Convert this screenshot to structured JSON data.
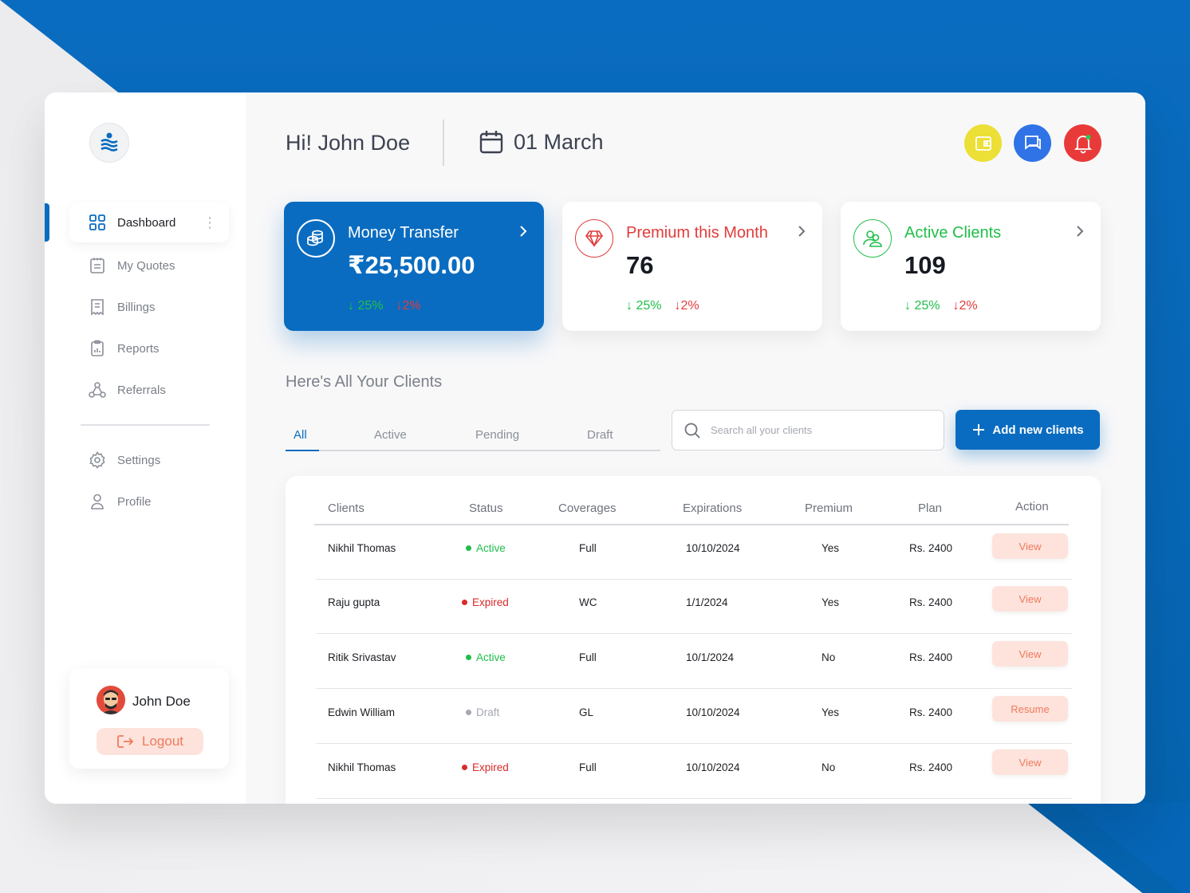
{
  "sidebar": {
    "items": [
      {
        "label": "Dashboard",
        "icon": "grid-icon"
      },
      {
        "label": "My Quotes",
        "icon": "quotes-icon"
      },
      {
        "label": "Billings",
        "icon": "billing-icon"
      },
      {
        "label": "Reports",
        "icon": "report-icon"
      },
      {
        "label": "Referrals",
        "icon": "referral-icon"
      },
      {
        "label": "Settings",
        "icon": "gear-icon"
      },
      {
        "label": "Profile",
        "icon": "user-icon"
      }
    ],
    "user": {
      "name": "John Doe",
      "logout_label": "Logout"
    }
  },
  "header": {
    "greeting": "Hi! John Doe",
    "date": "01 March"
  },
  "cards": [
    {
      "title": "Money Transfer",
      "value": "₹25,500.00",
      "up": "25%",
      "down": "2%"
    },
    {
      "title": "Premium this Month",
      "value": "76",
      "up": "25%",
      "down": "2%"
    },
    {
      "title": "Active Clients",
      "value": "109",
      "up": "25%",
      "down": "2%"
    }
  ],
  "clients": {
    "section_title": "Here's All Your Clients",
    "tabs": [
      "All",
      "Active",
      "Pending",
      "Draft"
    ],
    "search_placeholder": "Search all your clients",
    "add_label": "Add new clients",
    "columns": [
      "Clients",
      "Status",
      "Coverages",
      "Expirations",
      "Premium",
      "Plan",
      "Action"
    ],
    "rows": [
      {
        "client": "Nikhil Thomas",
        "status": "Active",
        "coverage": "Full",
        "expiration": "10/10/2024",
        "premium": "Yes",
        "plan": "Rs. 2400",
        "action": "View"
      },
      {
        "client": "Raju gupta",
        "status": "Expired",
        "coverage": "WC",
        "expiration": "1/1/2024",
        "premium": "Yes",
        "plan": "Rs. 2400",
        "action": "View"
      },
      {
        "client": "Ritik Srivastav",
        "status": "Active",
        "coverage": "Full",
        "expiration": "10/1/2024",
        "premium": "No",
        "plan": "Rs. 2400",
        "action": "View"
      },
      {
        "client": "Edwin William",
        "status": "Draft",
        "coverage": "GL",
        "expiration": "10/10/2024",
        "premium": "Yes",
        "plan": "Rs. 2400",
        "action": "Resume"
      },
      {
        "client": "Nikhil Thomas",
        "status": "Expired",
        "coverage": "Full",
        "expiration": "10/10/2024",
        "premium": "No",
        "plan": "Rs. 2400",
        "action": "View"
      }
    ]
  },
  "colors": {
    "primary": "#0a6cc0",
    "active": "#1fbf4a",
    "expired": "#d92b2b",
    "draft": "#a4a8b0",
    "premium_red": "#e23b3b",
    "wallet_yellow": "#ecdf36",
    "chat_blue": "#2f73e6",
    "bell_red": "#e93a3a"
  }
}
